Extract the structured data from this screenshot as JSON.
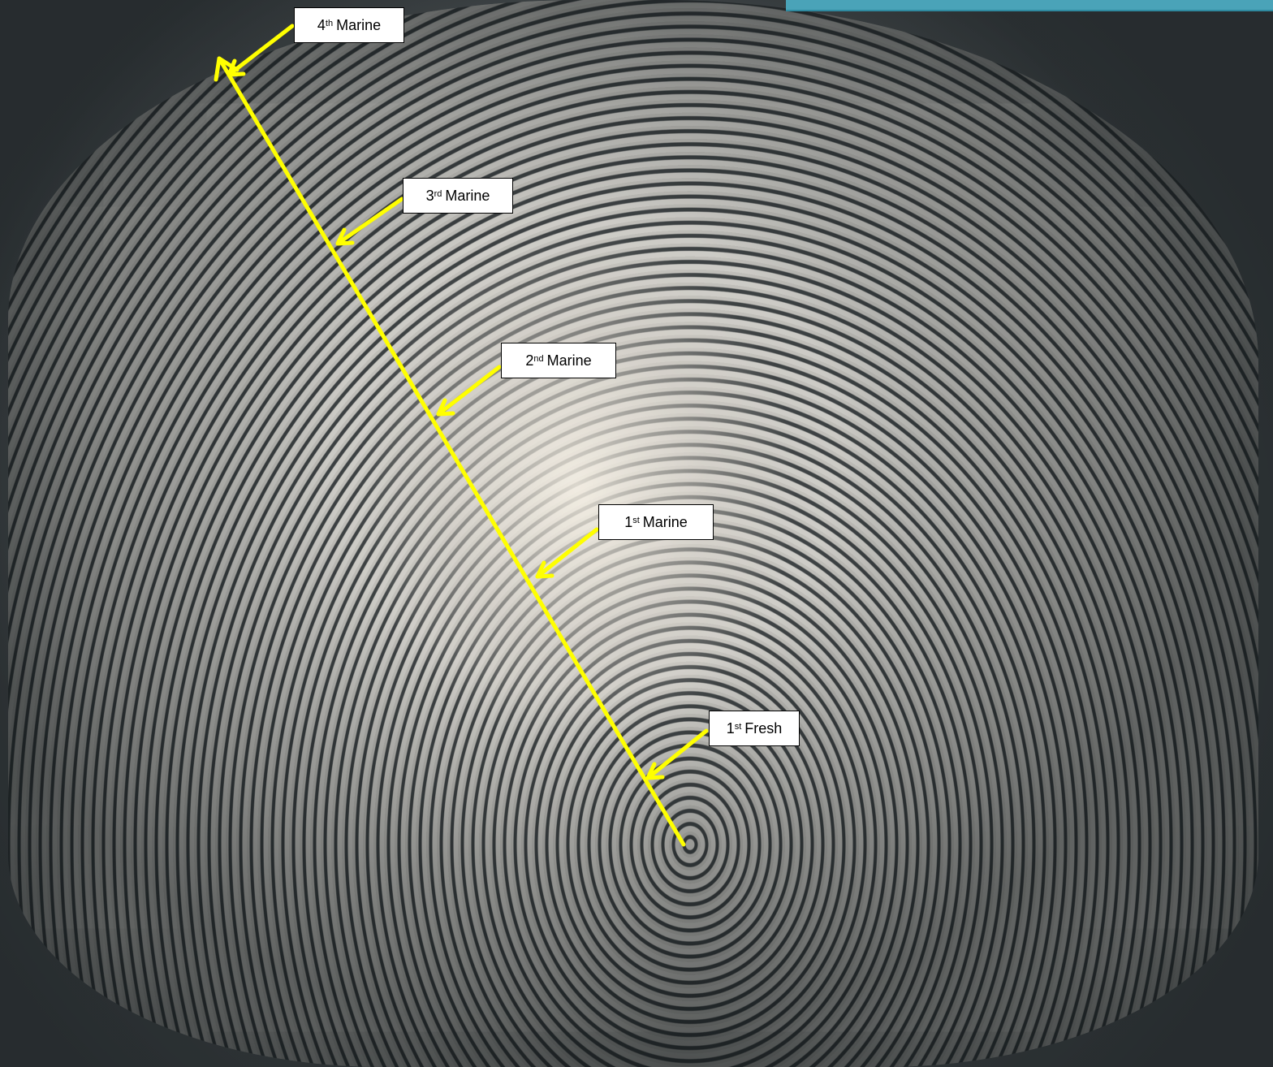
{
  "image": {
    "subject": "fish-scale-micrograph",
    "accent_line_color": "#ffff00",
    "label_background": "#ffffff",
    "label_border": "#000000"
  },
  "annotations": [
    {
      "number": "4",
      "suffix": "th",
      "text": "Marine"
    },
    {
      "number": "3",
      "suffix": "rd",
      "text": "Marine"
    },
    {
      "number": "2",
      "suffix": "nd",
      "text": "Marine"
    },
    {
      "number": "1",
      "suffix": "st",
      "text": "Marine"
    },
    {
      "number": "1",
      "suffix": "st",
      "text": "Fresh"
    }
  ]
}
